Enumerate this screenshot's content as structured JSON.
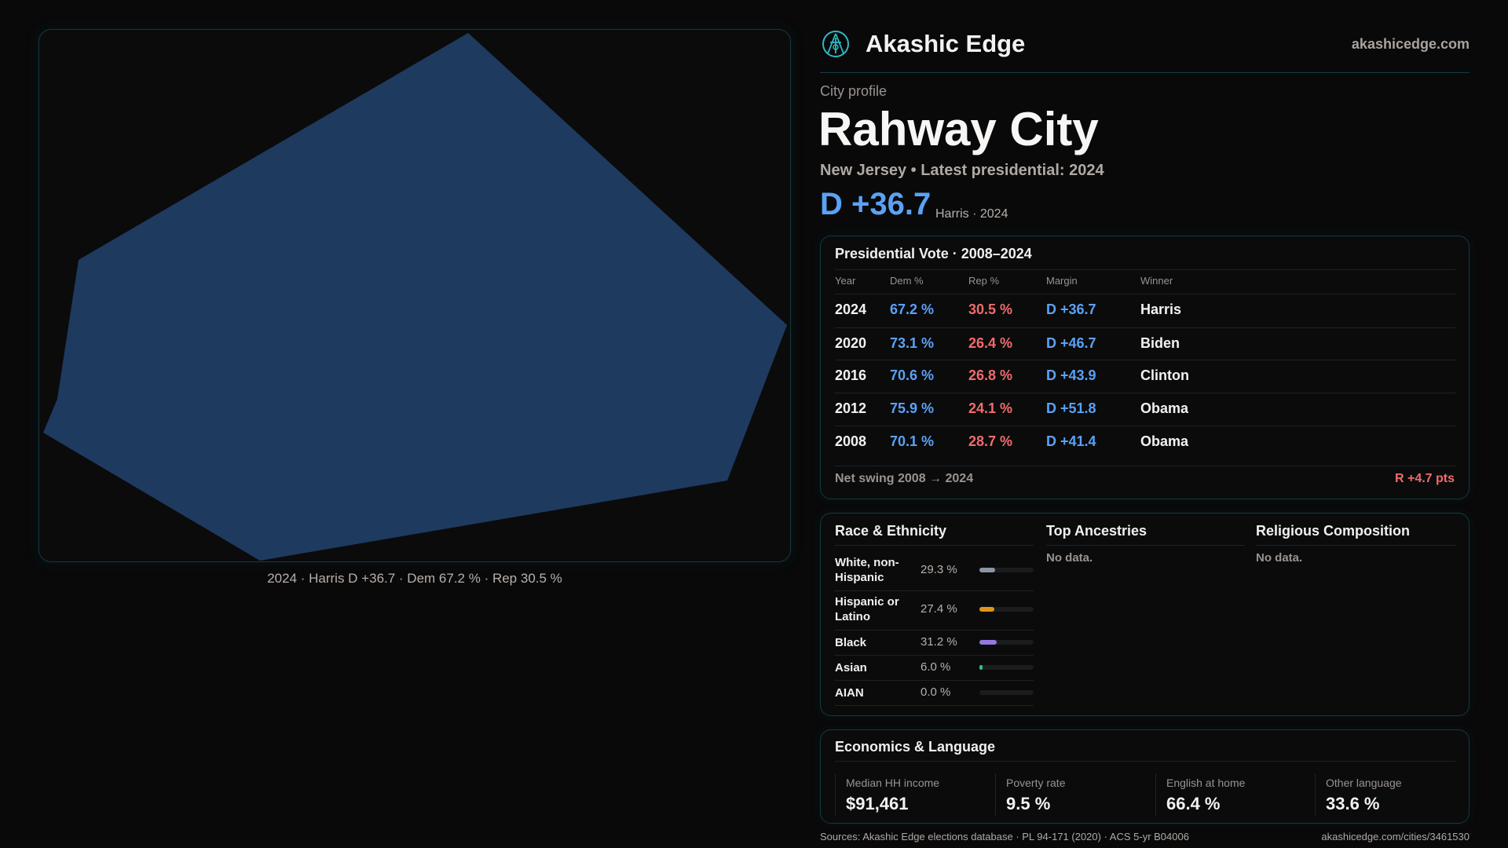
{
  "header": {
    "brand": "Akashic Edge",
    "site": "akashicedge.com"
  },
  "profile": {
    "kicker": "City profile",
    "title": "Rahway City",
    "subtitle": "New Jersey • Latest presidential: 2024",
    "margin": "D +36.7",
    "margin_sub": "Harris · 2024"
  },
  "map": {
    "caption": "2024 · Harris D +36.7 · Dem 67.2 % · Rep 30.5 %",
    "fill_color": "#1f3a5f"
  },
  "presidential": {
    "title": "Presidential Vote · 2008–2024",
    "headers": [
      "Year",
      "Dem %",
      "Rep %",
      "Margin",
      "Winner"
    ],
    "rows": [
      {
        "year": "2024",
        "dem": "67.2 %",
        "rep": "30.5 %",
        "margin": "D +36.7",
        "winner": "Harris"
      },
      {
        "year": "2020",
        "dem": "73.1 %",
        "rep": "26.4 %",
        "margin": "D +46.7",
        "winner": "Biden"
      },
      {
        "year": "2016",
        "dem": "70.6 %",
        "rep": "26.8 %",
        "margin": "D +43.9",
        "winner": "Clinton"
      },
      {
        "year": "2012",
        "dem": "75.9 %",
        "rep": "24.1 %",
        "margin": "D +51.8",
        "winner": "Obama"
      },
      {
        "year": "2008",
        "dem": "70.1 %",
        "rep": "28.7 %",
        "margin": "D +41.4",
        "winner": "Obama"
      }
    ],
    "swing_label": "Net swing 2008 → 2024",
    "swing_value": "R +4.7 pts"
  },
  "race": {
    "title": "Race & Ethnicity",
    "rows": [
      {
        "label": "White, non-Hispanic",
        "pct": "29.3 %",
        "value": 29.3,
        "color": "#8a95a5"
      },
      {
        "label": "Hispanic or Latino",
        "pct": "27.4 %",
        "value": 27.4,
        "color": "#e0951a"
      },
      {
        "label": "Black",
        "pct": "31.2 %",
        "value": 31.2,
        "color": "#9478e0"
      },
      {
        "label": "Asian",
        "pct": "6.0 %",
        "value": 6.0,
        "color": "#2fc28a"
      },
      {
        "label": "AIAN",
        "pct": "0.0 %",
        "value": 0.0,
        "color": "#555"
      }
    ]
  },
  "ancestries": {
    "title": "Top Ancestries",
    "empty": "No data."
  },
  "religion": {
    "title": "Religious Composition",
    "empty": "No data."
  },
  "economics": {
    "title": "Economics & Language",
    "cells": [
      {
        "label": "Median HH income",
        "value": "$91,461"
      },
      {
        "label": "Poverty rate",
        "value": "9.5 %"
      },
      {
        "label": "English at home",
        "value": "66.4 %"
      },
      {
        "label": "Other language",
        "value": "33.6 %"
      }
    ]
  },
  "footer": {
    "sources": "Sources: Akashic Edge elections database · PL 94-171 (2020) · ACS 5-yr B04006",
    "url": "akashicedge.com/cities/3461530"
  }
}
